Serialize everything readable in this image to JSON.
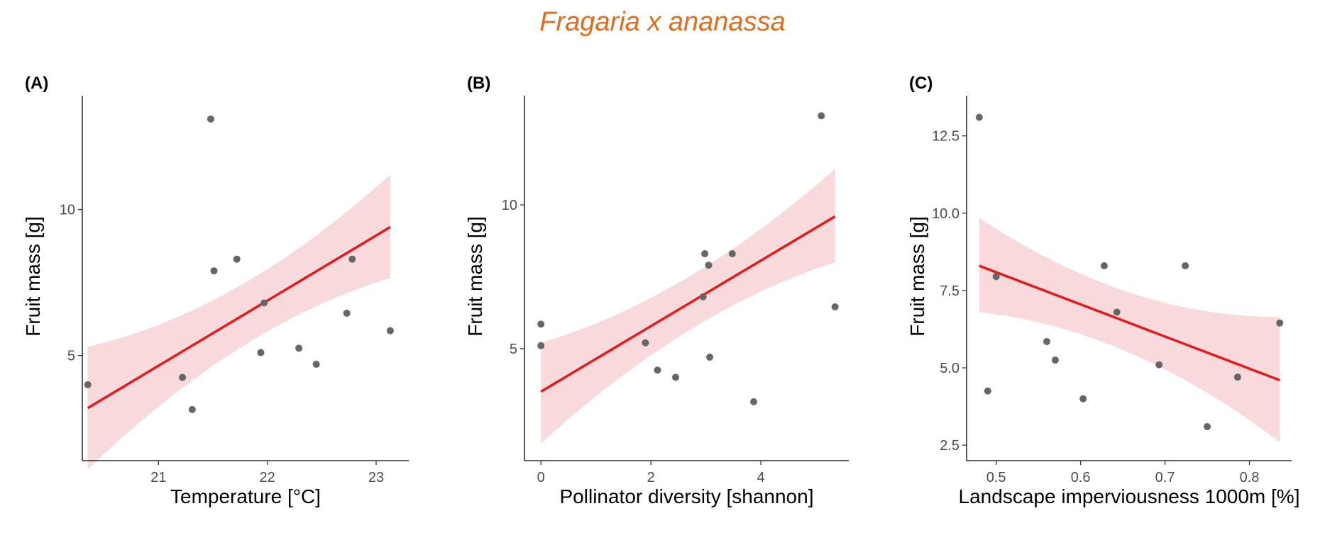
{
  "title": "Fragaria x ananassa",
  "colors": {
    "title": "#e06d1e",
    "line": "#e41a1c",
    "band": "#f4b6b9",
    "point": "#666666"
  },
  "chart_data": [
    {
      "type": "scatter",
      "panel": "(A)",
      "xlabel": "Temperature [°C]",
      "ylabel": "Fruit mass [g]",
      "xlim": [
        20.3,
        23.3
      ],
      "ylim": [
        1.4,
        13.9
      ],
      "xticks": [
        21,
        22,
        23
      ],
      "yticks": [
        5,
        10
      ],
      "x": [
        20.35,
        21.48,
        21.72,
        21.22,
        21.31,
        21.51,
        21.94,
        21.97,
        22.29,
        22.45,
        22.73,
        22.78,
        23.13
      ],
      "y": [
        4.0,
        13.1,
        8.3,
        4.25,
        3.15,
        7.9,
        5.1,
        6.8,
        5.25,
        4.7,
        6.45,
        8.3,
        5.85
      ],
      "fit": {
        "x": [
          20.35,
          23.13
        ],
        "y": [
          3.2,
          9.4
        ],
        "lower": [
          1.1,
          7.65
        ],
        "upper": [
          5.3,
          11.2
        ]
      }
    },
    {
      "type": "scatter",
      "panel": "(B)",
      "xlabel": "Pollinator diversity [shannon]",
      "ylabel": "Fruit mass [g]",
      "xlim": [
        -0.3,
        5.6
      ],
      "ylim": [
        1.1,
        13.8
      ],
      "xticks": [
        0,
        2,
        4
      ],
      "yticks": [
        5,
        10
      ],
      "x": [
        0.0,
        0.0,
        1.9,
        2.12,
        2.45,
        2.95,
        2.98,
        3.05,
        3.07,
        3.48,
        3.87,
        5.1,
        5.35
      ],
      "y": [
        5.85,
        5.1,
        5.2,
        4.25,
        4.0,
        6.8,
        8.3,
        7.9,
        4.7,
        8.3,
        3.15,
        13.1,
        6.45
      ],
      "fit": {
        "x": [
          0.0,
          5.35
        ],
        "y": [
          3.5,
          9.6
        ],
        "lower": [
          1.7,
          8.0
        ],
        "upper": [
          5.2,
          11.25
        ]
      }
    },
    {
      "type": "scatter",
      "panel": "(C)",
      "xlabel": "Landscape imperviousness 1000m [%]",
      "ylabel": "Fruit mass [g]",
      "xlim": [
        0.465,
        0.85
      ],
      "ylim": [
        2.0,
        13.8
      ],
      "xticks": [
        0.5,
        0.6,
        0.7,
        0.8
      ],
      "yticks": [
        2.5,
        5.0,
        7.5,
        10.0,
        12.5
      ],
      "x": [
        0.48,
        0.49,
        0.5,
        0.56,
        0.57,
        0.603,
        0.628,
        0.643,
        0.693,
        0.724,
        0.75,
        0.786,
        0.836
      ],
      "y": [
        13.1,
        4.25,
        7.95,
        5.85,
        5.25,
        4.0,
        8.3,
        6.8,
        5.1,
        8.3,
        3.1,
        4.7,
        6.45
      ],
      "fit": {
        "x": [
          0.48,
          0.836
        ],
        "y": [
          8.3,
          4.6
        ],
        "lower": [
          6.8,
          2.6
        ],
        "upper": [
          9.85,
          6.65
        ]
      }
    }
  ]
}
